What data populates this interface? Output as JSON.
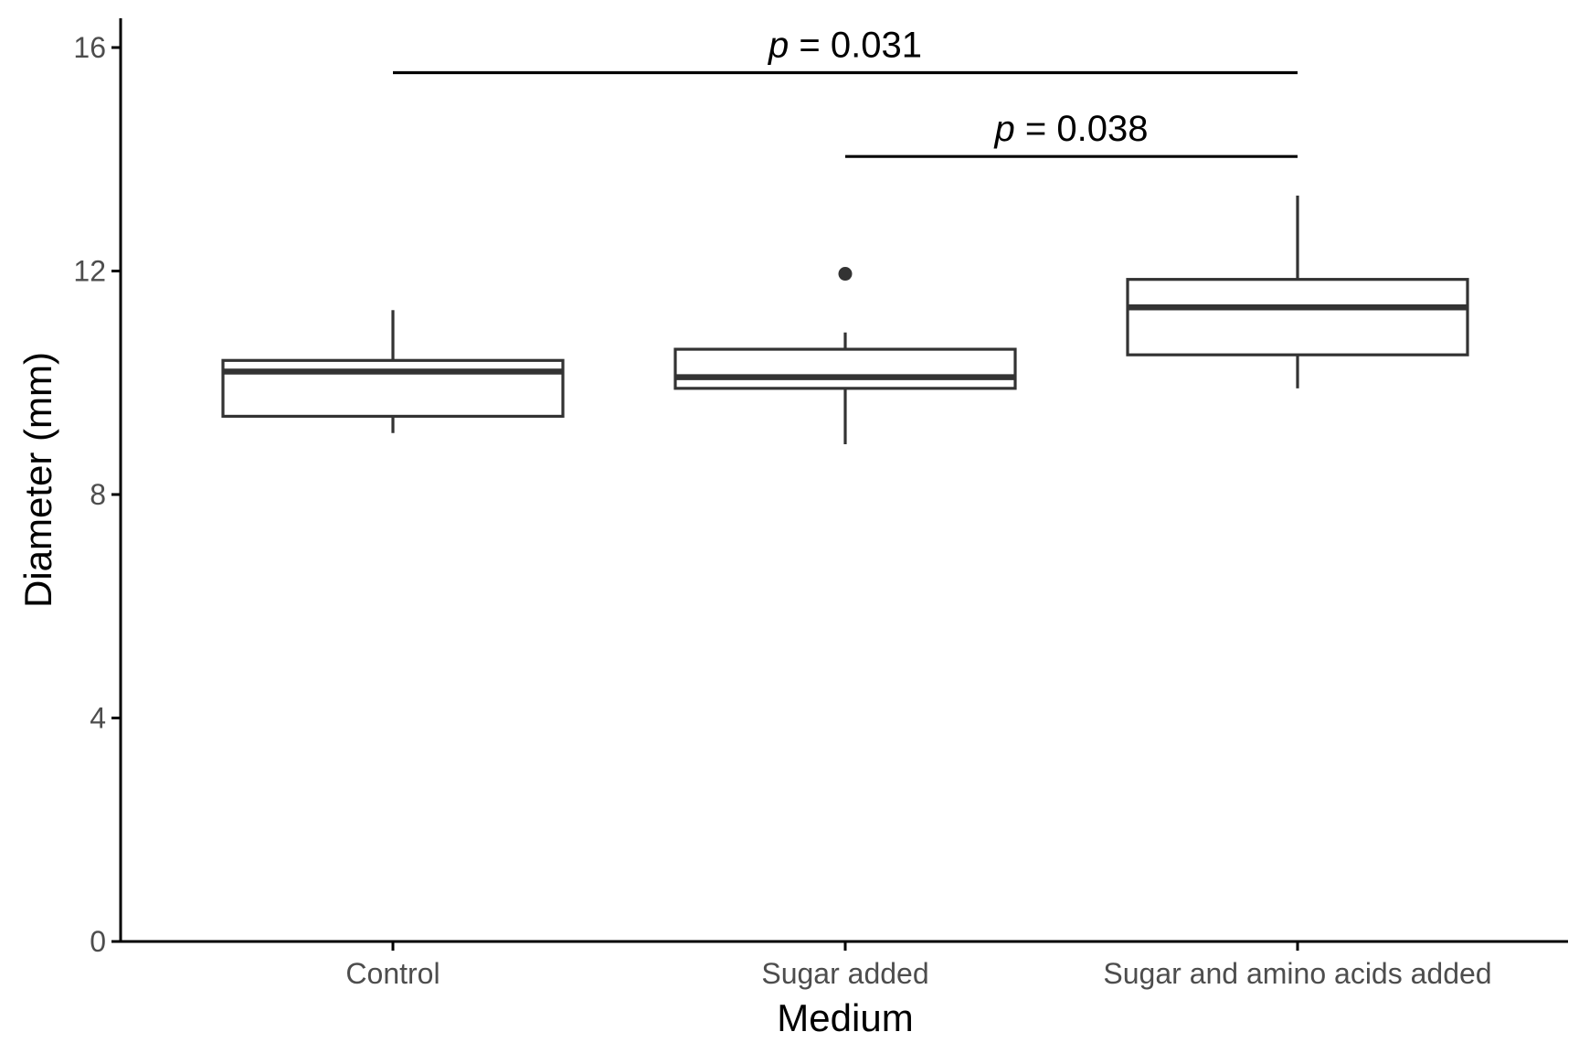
{
  "chart_data": {
    "type": "boxplot",
    "title": "",
    "xlabel": "Medium",
    "ylabel": "Diameter (mm)",
    "ylim": [
      0,
      16.5
    ],
    "yticks": [
      "0",
      "4",
      "8",
      "12",
      "16"
    ],
    "grid": false,
    "categories": [
      "Control",
      "Sugar added",
      "Sugar and amino acids added"
    ],
    "boxes": [
      {
        "category": "Control",
        "whisker_low": 9.1,
        "q1": 9.4,
        "median": 10.2,
        "q3": 10.4,
        "whisker_high": 11.3,
        "outliers": []
      },
      {
        "category": "Sugar added",
        "whisker_low": 8.9,
        "q1": 9.9,
        "median": 10.1,
        "q3": 10.6,
        "whisker_high": 10.9,
        "outliers": [
          11.95
        ]
      },
      {
        "category": "Sugar and amino acids added",
        "whisker_low": 9.9,
        "q1": 10.5,
        "median": 11.35,
        "q3": 11.85,
        "whisker_high": 13.35,
        "outliers": []
      }
    ],
    "comparisons": [
      {
        "from": "Control",
        "to": "Sugar and amino acids added",
        "y": 15.55,
        "p_symbol": "p",
        "p_rest": " = 0.031"
      },
      {
        "from": "Sugar added",
        "to": "Sugar and amino acids added",
        "y": 14.05,
        "p_symbol": "p",
        "p_rest": " = 0.038"
      }
    ],
    "colors": {
      "box_stroke": "#333333",
      "box_fill": "#ffffff",
      "axis": "#000000",
      "tick_label": "#4d4d4d",
      "outlier": "#333333"
    }
  }
}
